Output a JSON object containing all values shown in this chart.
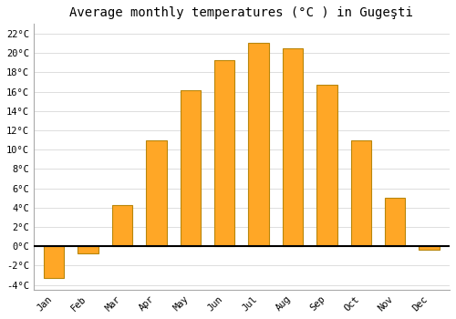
{
  "title": "Average monthly temperatures (°C ) in Gugeşti",
  "months": [
    "Jan",
    "Feb",
    "Mar",
    "Apr",
    "May",
    "Jun",
    "Jul",
    "Aug",
    "Sep",
    "Oct",
    "Nov",
    "Dec"
  ],
  "values": [
    -3.3,
    -0.7,
    4.3,
    11.0,
    16.1,
    19.3,
    21.0,
    20.5,
    16.7,
    11.0,
    5.0,
    -0.4
  ],
  "bar_color": "#FFA726",
  "bar_edge_color": "#B8860B",
  "background_color": "#FFFFFF",
  "plot_bg_color": "#FFFFFF",
  "grid_color": "#DDDDDD",
  "zero_line_color": "#000000",
  "ylim": [
    -4.5,
    23
  ],
  "yticks": [
    -4,
    -2,
    0,
    2,
    4,
    6,
    8,
    10,
    12,
    14,
    16,
    18,
    20,
    22
  ],
  "title_fontsize": 10,
  "tick_fontsize": 7.5,
  "bar_width": 0.6,
  "font_family": "monospace"
}
